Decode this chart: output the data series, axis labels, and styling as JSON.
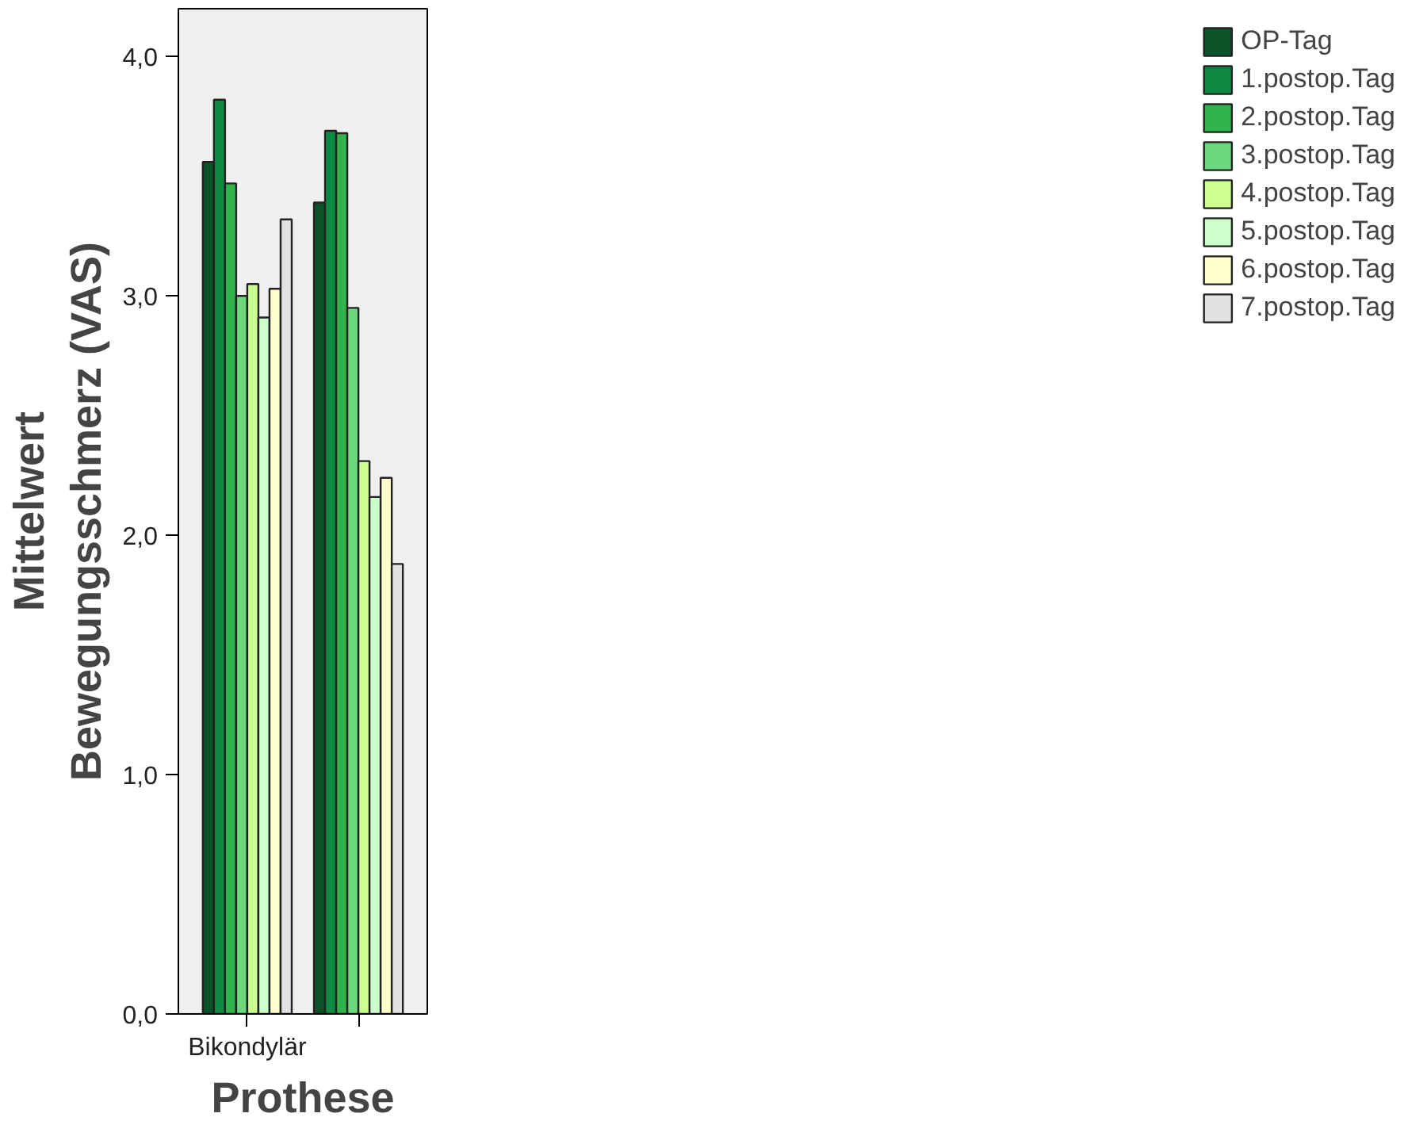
{
  "chart_data": {
    "type": "bar",
    "xlabel": "Prothese",
    "ylabel": "Mittelwert\nBewegungsschmerz (VAS)",
    "categories": [
      "Bikondylär",
      null
    ],
    "series": [
      {
        "name": "OP-Tag",
        "color": "#0b5229",
        "values": [
          3.56,
          3.39
        ]
      },
      {
        "name": "1.postop.Tag",
        "color": "#0f8a45",
        "values": [
          3.82,
          3.69
        ]
      },
      {
        "name": "2.postop.Tag",
        "color": "#31b44b",
        "values": [
          3.47,
          3.68
        ]
      },
      {
        "name": "3.postop.Tag",
        "color": "#6cd97e",
        "values": [
          3.0,
          2.95
        ]
      },
      {
        "name": "4.postop.Tag",
        "color": "#ccff90",
        "values": [
          3.05,
          2.31
        ]
      },
      {
        "name": "5.postop.Tag",
        "color": "#ccffcc",
        "values": [
          2.91,
          2.16
        ]
      },
      {
        "name": "6.postop.Tag",
        "color": "#ffffcc",
        "values": [
          3.03,
          2.24
        ]
      },
      {
        "name": "7.postop.Tag",
        "color": "#e1e1e1",
        "values": [
          3.32,
          1.88
        ]
      }
    ],
    "ylim": [
      0,
      4.2
    ],
    "yticks": [
      {
        "value": 0,
        "label": "0,0"
      },
      {
        "value": 1,
        "label": "1,0"
      },
      {
        "value": 2,
        "label": "2,0"
      },
      {
        "value": 3,
        "label": "3,0"
      },
      {
        "value": 4,
        "label": "4,0"
      }
    ],
    "grid": false,
    "legend": "right"
  }
}
